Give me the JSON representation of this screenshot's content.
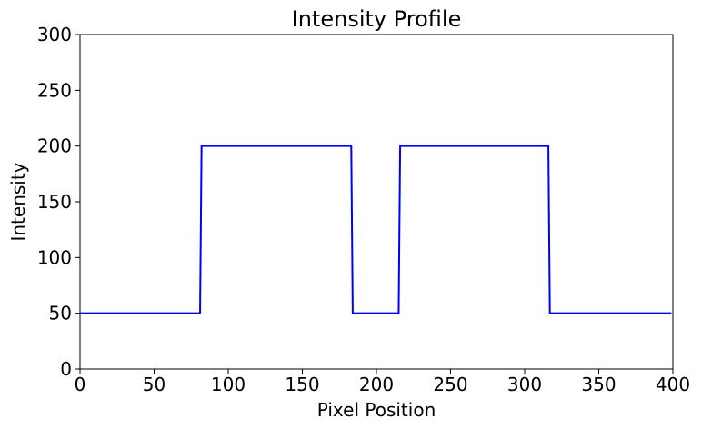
{
  "chart_data": {
    "type": "line",
    "title": "Intensity Profile",
    "xlabel": "Pixel Position",
    "ylabel": "Intensity",
    "xlim": [
      0,
      400
    ],
    "ylim": [
      0,
      300
    ],
    "xticks": [
      0,
      50,
      100,
      150,
      200,
      250,
      300,
      350,
      400
    ],
    "yticks": [
      0,
      50,
      100,
      150,
      200,
      250,
      300
    ],
    "grid": false,
    "series": [
      {
        "color": "#0000ff",
        "x": [
          0,
          81,
          82,
          183,
          184,
          215,
          216,
          316,
          317,
          399
        ],
        "y": [
          50,
          50,
          200,
          200,
          50,
          50,
          200,
          200,
          50,
          50
        ]
      }
    ]
  }
}
